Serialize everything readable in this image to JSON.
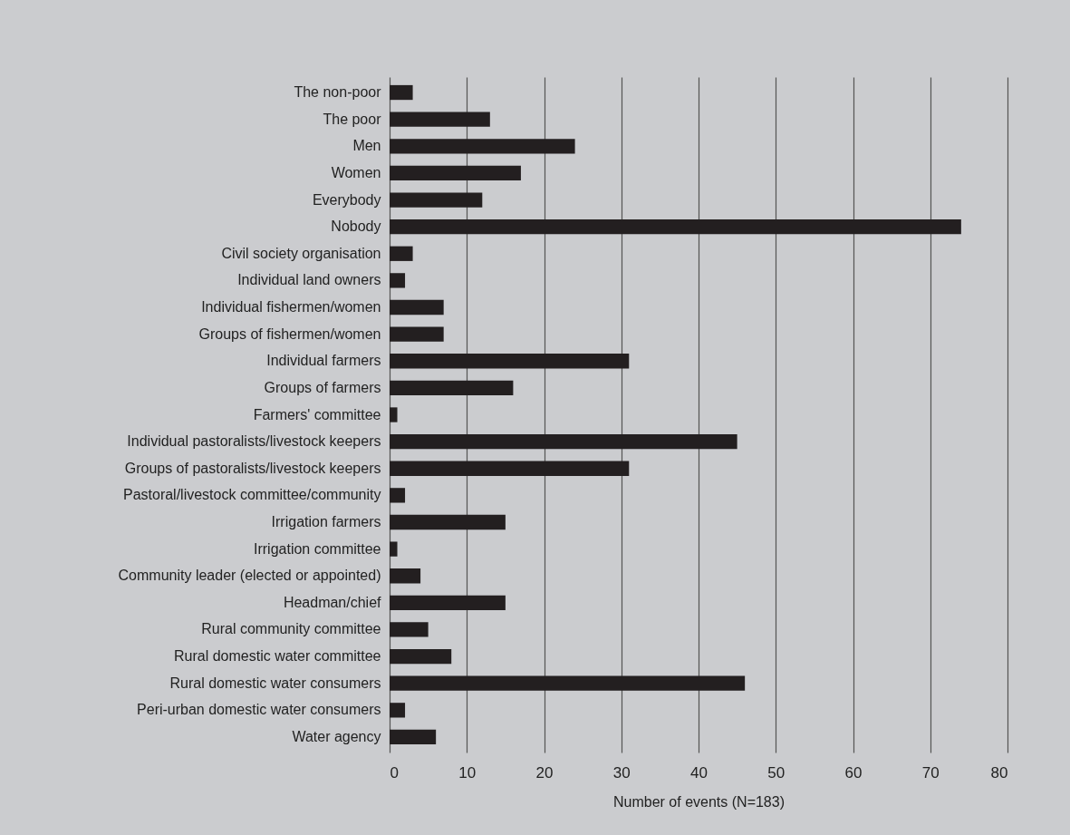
{
  "chart_data": {
    "type": "bar",
    "orientation": "horizontal",
    "categories": [
      "The non-poor",
      "The poor",
      "Men",
      "Women",
      "Everybody",
      "Nobody",
      "Civil society organisation",
      "Individual land owners",
      "Individual fishermen/women",
      "Groups of fishermen/women",
      "Individual farmers",
      "Groups of farmers",
      "Farmers' committee",
      "Individual pastoralists/livestock keepers",
      "Groups of pastoralists/livestock keepers",
      "Pastoral/livestock committee/community",
      "Irrigation farmers",
      "Irrigation committee",
      "Community leader (elected or appointed)",
      "Headman/chief",
      "Rural community committee",
      "Rural domestic water committee",
      "Rural domestic water consumers",
      "Peri-urban domestic water consumers",
      "Water agency"
    ],
    "values": [
      3,
      13,
      24,
      17,
      12,
      74,
      3,
      2,
      7,
      7,
      31,
      16,
      1,
      45,
      31,
      2,
      15,
      1,
      4,
      15,
      5,
      8,
      46,
      2,
      6
    ],
    "color": "#231f20",
    "xlabel": "Number of events (N=183)",
    "xlim": [
      0,
      80
    ],
    "xticks": [
      0,
      10,
      20,
      30,
      40,
      50,
      60,
      70,
      80
    ],
    "grid": "x"
  }
}
